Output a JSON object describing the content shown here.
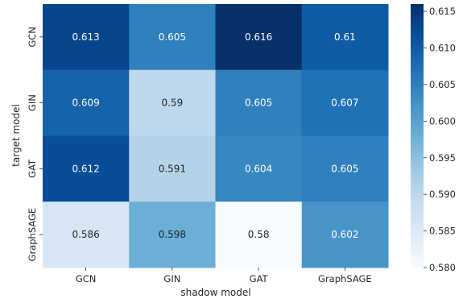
{
  "chart_data": {
    "type": "heatmap",
    "xlabel": "shadow model",
    "ylabel": "target model",
    "x_categories": [
      "GCN",
      "GIN",
      "GAT",
      "GraphSAGE"
    ],
    "y_categories": [
      "GCN",
      "GIN",
      "GAT",
      "GraphSAGE"
    ],
    "values": [
      [
        0.613,
        0.605,
        0.616,
        0.61
      ],
      [
        0.609,
        0.59,
        0.605,
        0.607
      ],
      [
        0.612,
        0.591,
        0.604,
        0.605
      ],
      [
        0.586,
        0.598,
        0.58,
        0.602
      ]
    ],
    "value_labels": [
      [
        "0.613",
        "0.605",
        "0.616",
        "0.61"
      ],
      [
        "0.609",
        "0.59",
        "0.605",
        "0.607"
      ],
      [
        "0.612",
        "0.591",
        "0.604",
        "0.605"
      ],
      [
        "0.586",
        "0.598",
        "0.58",
        "0.602"
      ]
    ],
    "colormap": "Blues",
    "vmin": 0.58,
    "vmax": 0.616,
    "colorbar_ticks": [
      0.58,
      0.585,
      0.59,
      0.595,
      0.6,
      0.605,
      0.61,
      0.615
    ],
    "colorbar_tick_labels": [
      "0.580",
      "0.585",
      "0.590",
      "0.595",
      "0.600",
      "0.605",
      "0.610",
      "0.615"
    ],
    "grid": false
  }
}
